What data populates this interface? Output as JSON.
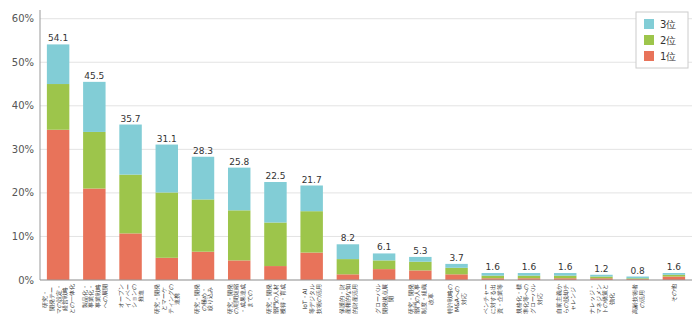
{
  "chart_data": {
    "type": "bar",
    "stacked": true,
    "categories": [
      "研究・\n開発テー\nマの設定・\n経営戦略\nとの一体化",
      "製品化・\n事業化・\n事業戦略\nへの展開",
      "オープン\nイノベー\nションの\n推進",
      "研究・開発\nとマーケ\nティングの\n連携",
      "研究・開発\nの極め・\n絞り込み",
      "研究・開発\nの期間短縮\n・成果達成\nまでの",
      "研究・開発\n部門の人材\n獲得・育成",
      "IoT・AI\n等デジタル\n技術の活用",
      "保護的・財\n産権的な知\n的財産活用",
      "グローバル\n開発拠点展\n開",
      "研究・開発\n部門の人事\n制度・組織\n改革",
      "特許戦略の\nM&Aへの\n対応",
      "ベンチャー\nに対する出\n資・企業等",
      "規格化・標\n準化等への\nグローバル\n対応",
      "自前主義か\nらの脱却チ\nャレンジ",
      "ナレッジ・\nマネジメン\nトの橋策と\n強化",
      "高齢技術者\nの活用",
      "その他"
    ],
    "series": [
      {
        "name": "1位",
        "color": "#E8735A",
        "values": [
          34.5,
          21.0,
          10.7,
          5.1,
          6.5,
          4.5,
          3.2,
          6.3,
          1.3,
          2.5,
          2.2,
          1.3,
          0.4,
          0.4,
          0.4,
          0.4,
          0.2,
          0.8
        ]
      },
      {
        "name": "2位",
        "color": "#9DC54B",
        "values": [
          10.5,
          13.0,
          13.5,
          15.0,
          12.0,
          11.5,
          10.0,
          9.5,
          3.5,
          2.0,
          2.0,
          1.5,
          0.6,
          0.6,
          0.6,
          0.4,
          0.2,
          0.4
        ]
      },
      {
        "name": "3位",
        "color": "#82CDD6",
        "values": [
          9.1,
          11.5,
          11.5,
          11.0,
          9.8,
          9.8,
          9.3,
          5.9,
          3.4,
          1.6,
          1.1,
          0.9,
          0.6,
          0.6,
          0.6,
          0.4,
          0.4,
          0.4
        ]
      }
    ],
    "totals": [
      54.1,
      45.5,
      35.7,
      31.1,
      28.3,
      25.8,
      22.5,
      21.7,
      8.2,
      6.1,
      5.3,
      3.7,
      1.6,
      1.6,
      1.6,
      1.2,
      0.8,
      1.6
    ],
    "ylim": [
      0,
      62
    ],
    "yticks": [
      {
        "value": 0,
        "label": "0%"
      },
      {
        "value": 10,
        "label": "10%"
      },
      {
        "value": 20,
        "label": "20%"
      },
      {
        "value": 30,
        "label": "30%"
      },
      {
        "value": 40,
        "label": "40%"
      },
      {
        "value": 50,
        "label": "50%"
      },
      {
        "value": 60,
        "label": "60%"
      }
    ],
    "grid": true,
    "legend": "upper right"
  }
}
